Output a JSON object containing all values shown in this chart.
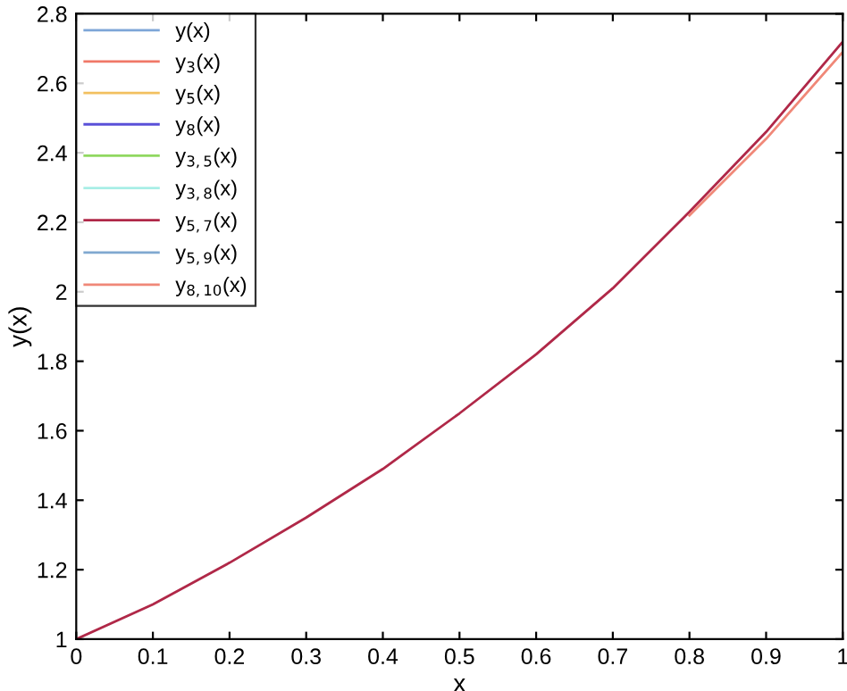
{
  "chart_data": {
    "type": "line",
    "xlabel": "x",
    "ylabel": "y(x)",
    "x": [
      0,
      0.1,
      0.2,
      0.3,
      0.4,
      0.5,
      0.6,
      0.7,
      0.8,
      0.9,
      1
    ],
    "xlim": [
      0,
      1
    ],
    "ylim": [
      1,
      2.8
    ],
    "xticks": [
      0,
      0.1,
      0.2,
      0.3,
      0.4,
      0.5,
      0.6,
      0.7,
      0.8,
      0.9,
      1
    ],
    "yticks": [
      1,
      1.2,
      1.4,
      1.6,
      1.8,
      2,
      2.2,
      2.4,
      2.6,
      2.8
    ],
    "grid": false,
    "legend": "top left",
    "marker": "none",
    "line_style": "solid",
    "series": [
      {
        "name": "y(x)",
        "color": "#7ea6d8",
        "values": [
          null,
          null,
          null,
          null,
          null,
          null,
          null,
          null,
          null,
          null,
          null
        ]
      },
      {
        "name": "y$_{3}$(x)",
        "color": "#f07868",
        "values": [
          null,
          null,
          null,
          null,
          null,
          null,
          null,
          null,
          null,
          null,
          null
        ]
      },
      {
        "name": "y$_{5}$(x)",
        "color": "#f2c060",
        "values": [
          null,
          null,
          null,
          null,
          null,
          null,
          null,
          null,
          null,
          null,
          null
        ]
      },
      {
        "name": "y$_{8}$(x)",
        "color": "#5a50d8",
        "values": [
          null,
          null,
          null,
          null,
          null,
          null,
          null,
          null,
          null,
          null,
          null
        ]
      },
      {
        "name": "y$_{3,5}$(x)",
        "color": "#90d860",
        "values": [
          null,
          null,
          null,
          null,
          null,
          null,
          null,
          null,
          null,
          null,
          null
        ]
      },
      {
        "name": "y$_{3,8}$(x)",
        "color": "#a8eee6",
        "values": [
          null,
          null,
          null,
          null,
          null,
          null,
          null,
          null,
          null,
          null,
          null
        ]
      },
      {
        "name": "y$_{5,7}$(x)",
        "color": "#b02848",
        "values": [
          1,
          1.1,
          1.22,
          1.35,
          1.49,
          1.65,
          1.82,
          2.01,
          2.23,
          2.46,
          2.72
        ]
      },
      {
        "name": "y$_{5,9}$(x)",
        "color": "#80a8d0",
        "values": [
          null,
          null,
          null,
          null,
          null,
          null,
          null,
          null,
          null,
          null,
          null
        ]
      },
      {
        "name": "y$_{8,10}$(x)",
        "color": "#f08878",
        "values": [
          null,
          null,
          null,
          null,
          null,
          null,
          null,
          null,
          2.22,
          2.44,
          2.69
        ]
      }
    ]
  }
}
